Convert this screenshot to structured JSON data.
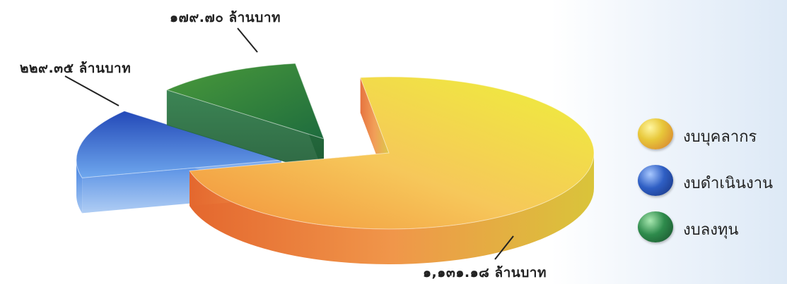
{
  "chart_data": {
    "type": "pie",
    "categories": [
      "งบบุคลากร",
      "งบดำเนินงาน",
      "งบลงทุน"
    ],
    "values": [
      1131.18,
      229.35,
      179.7
    ],
    "data_labels": [
      "๑,๑๓๑.๑๘ ล้านบาท",
      "๒๒๙.๓๕ ล้านบาท",
      "๑๗๙.๗๐ ล้านบาท"
    ],
    "colors": [
      "#e8d23a",
      "#2f5fc4",
      "#2e8b4c"
    ],
    "legend": "right",
    "title": ""
  }
}
